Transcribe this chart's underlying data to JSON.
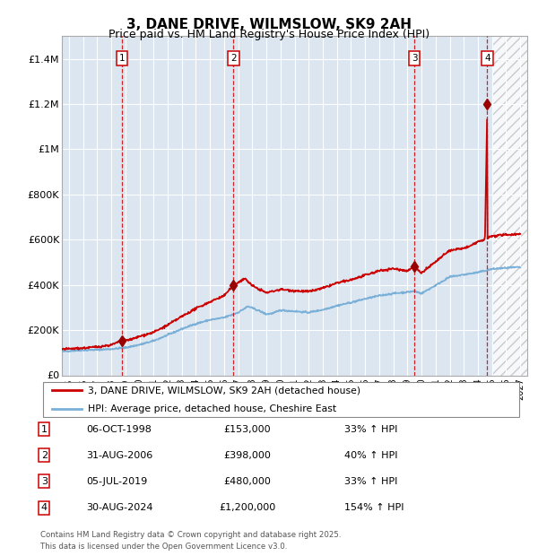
{
  "title": "3, DANE DRIVE, WILMSLOW, SK9 2AH",
  "subtitle": "Price paid vs. HM Land Registry's House Price Index (HPI)",
  "title_fontsize": 11,
  "subtitle_fontsize": 9,
  "background_color": "#ffffff",
  "plot_bg_color": "#dce6f1",
  "grid_color": "#ffffff",
  "ylim": [
    0,
    1500000
  ],
  "xlim_start": 1994.5,
  "xlim_end": 2027.5,
  "yticks": [
    0,
    200000,
    400000,
    600000,
    800000,
    1000000,
    1200000,
    1400000
  ],
  "ytick_labels": [
    "£0",
    "£200K",
    "£400K",
    "£600K",
    "£800K",
    "£1M",
    "£1.2M",
    "£1.4M"
  ],
  "xticks": [
    1995,
    1996,
    1997,
    1998,
    1999,
    2000,
    2001,
    2002,
    2003,
    2004,
    2005,
    2006,
    2007,
    2008,
    2009,
    2010,
    2011,
    2012,
    2013,
    2014,
    2015,
    2016,
    2017,
    2018,
    2019,
    2020,
    2021,
    2022,
    2023,
    2024,
    2025,
    2026,
    2027
  ],
  "hpi_line_color": "#7ab0d8",
  "price_line_color": "#cc0000",
  "marker_color": "#990000",
  "sale_events": [
    {
      "num": 1,
      "year": 1998.75,
      "price": 153000
    },
    {
      "num": 2,
      "year": 2006.67,
      "price": 398000
    },
    {
      "num": 3,
      "year": 2019.5,
      "price": 480000
    },
    {
      "num": 4,
      "year": 2024.67,
      "price": 1200000
    }
  ],
  "legend_line1": "3, DANE DRIVE, WILMSLOW, SK9 2AH (detached house)",
  "legend_line2": "HPI: Average price, detached house, Cheshire East",
  "footer1": "Contains HM Land Registry data © Crown copyright and database right 2025.",
  "footer2": "This data is licensed under the Open Government Licence v3.0.",
  "table_rows": [
    {
      "num": 1,
      "date": "06-OCT-1998",
      "price": "£153,000",
      "hpi": "33% ↑ HPI"
    },
    {
      "num": 2,
      "date": "31-AUG-2006",
      "price": "£398,000",
      "hpi": "40% ↑ HPI"
    },
    {
      "num": 3,
      "date": "05-JUL-2019",
      "price": "£480,000",
      "hpi": "33% ↑ HPI"
    },
    {
      "num": 4,
      "date": "30-AUG-2024",
      "price": "£1,200,000",
      "hpi": "154% ↑ HPI"
    }
  ]
}
